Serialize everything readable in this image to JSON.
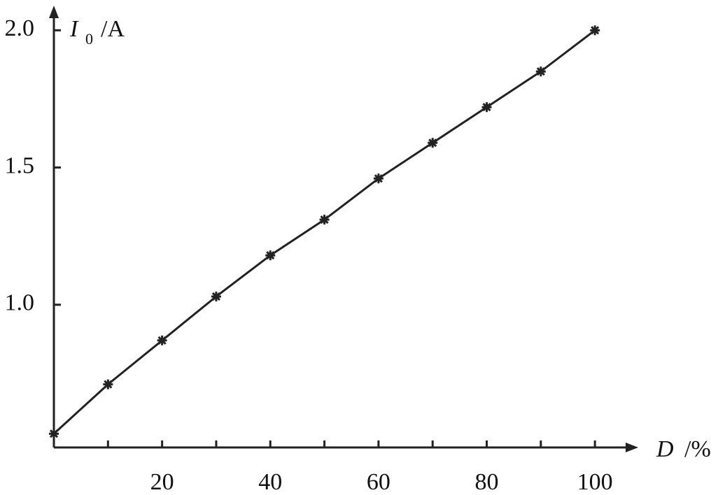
{
  "chart_data": {
    "type": "line",
    "xlabel": {
      "symbol": "D",
      "unit": "/%"
    },
    "ylabel": {
      "symbol": "I",
      "subscript": "0",
      "unit": "/A"
    },
    "x": [
      0,
      10,
      20,
      30,
      40,
      50,
      60,
      70,
      80,
      90,
      100
    ],
    "series": [
      {
        "color": "#222",
        "values": [
          0.53,
          0.71,
          0.87,
          1.03,
          1.18,
          1.31,
          1.46,
          1.59,
          1.72,
          1.85,
          2.0
        ]
      }
    ],
    "xlim": [
      0,
      108
    ],
    "ylim": [
      0.48,
      2.09
    ],
    "xticks": [
      20,
      40,
      60,
      80,
      100
    ],
    "xminor_ticks": [
      10,
      30,
      50,
      70,
      90
    ],
    "yticks": [
      {
        "value": 1.0,
        "label": "1.0"
      },
      {
        "value": 1.5,
        "label": "1.5"
      },
      {
        "value": 2.0,
        "label": "2.0"
      }
    ],
    "grid": false
  }
}
